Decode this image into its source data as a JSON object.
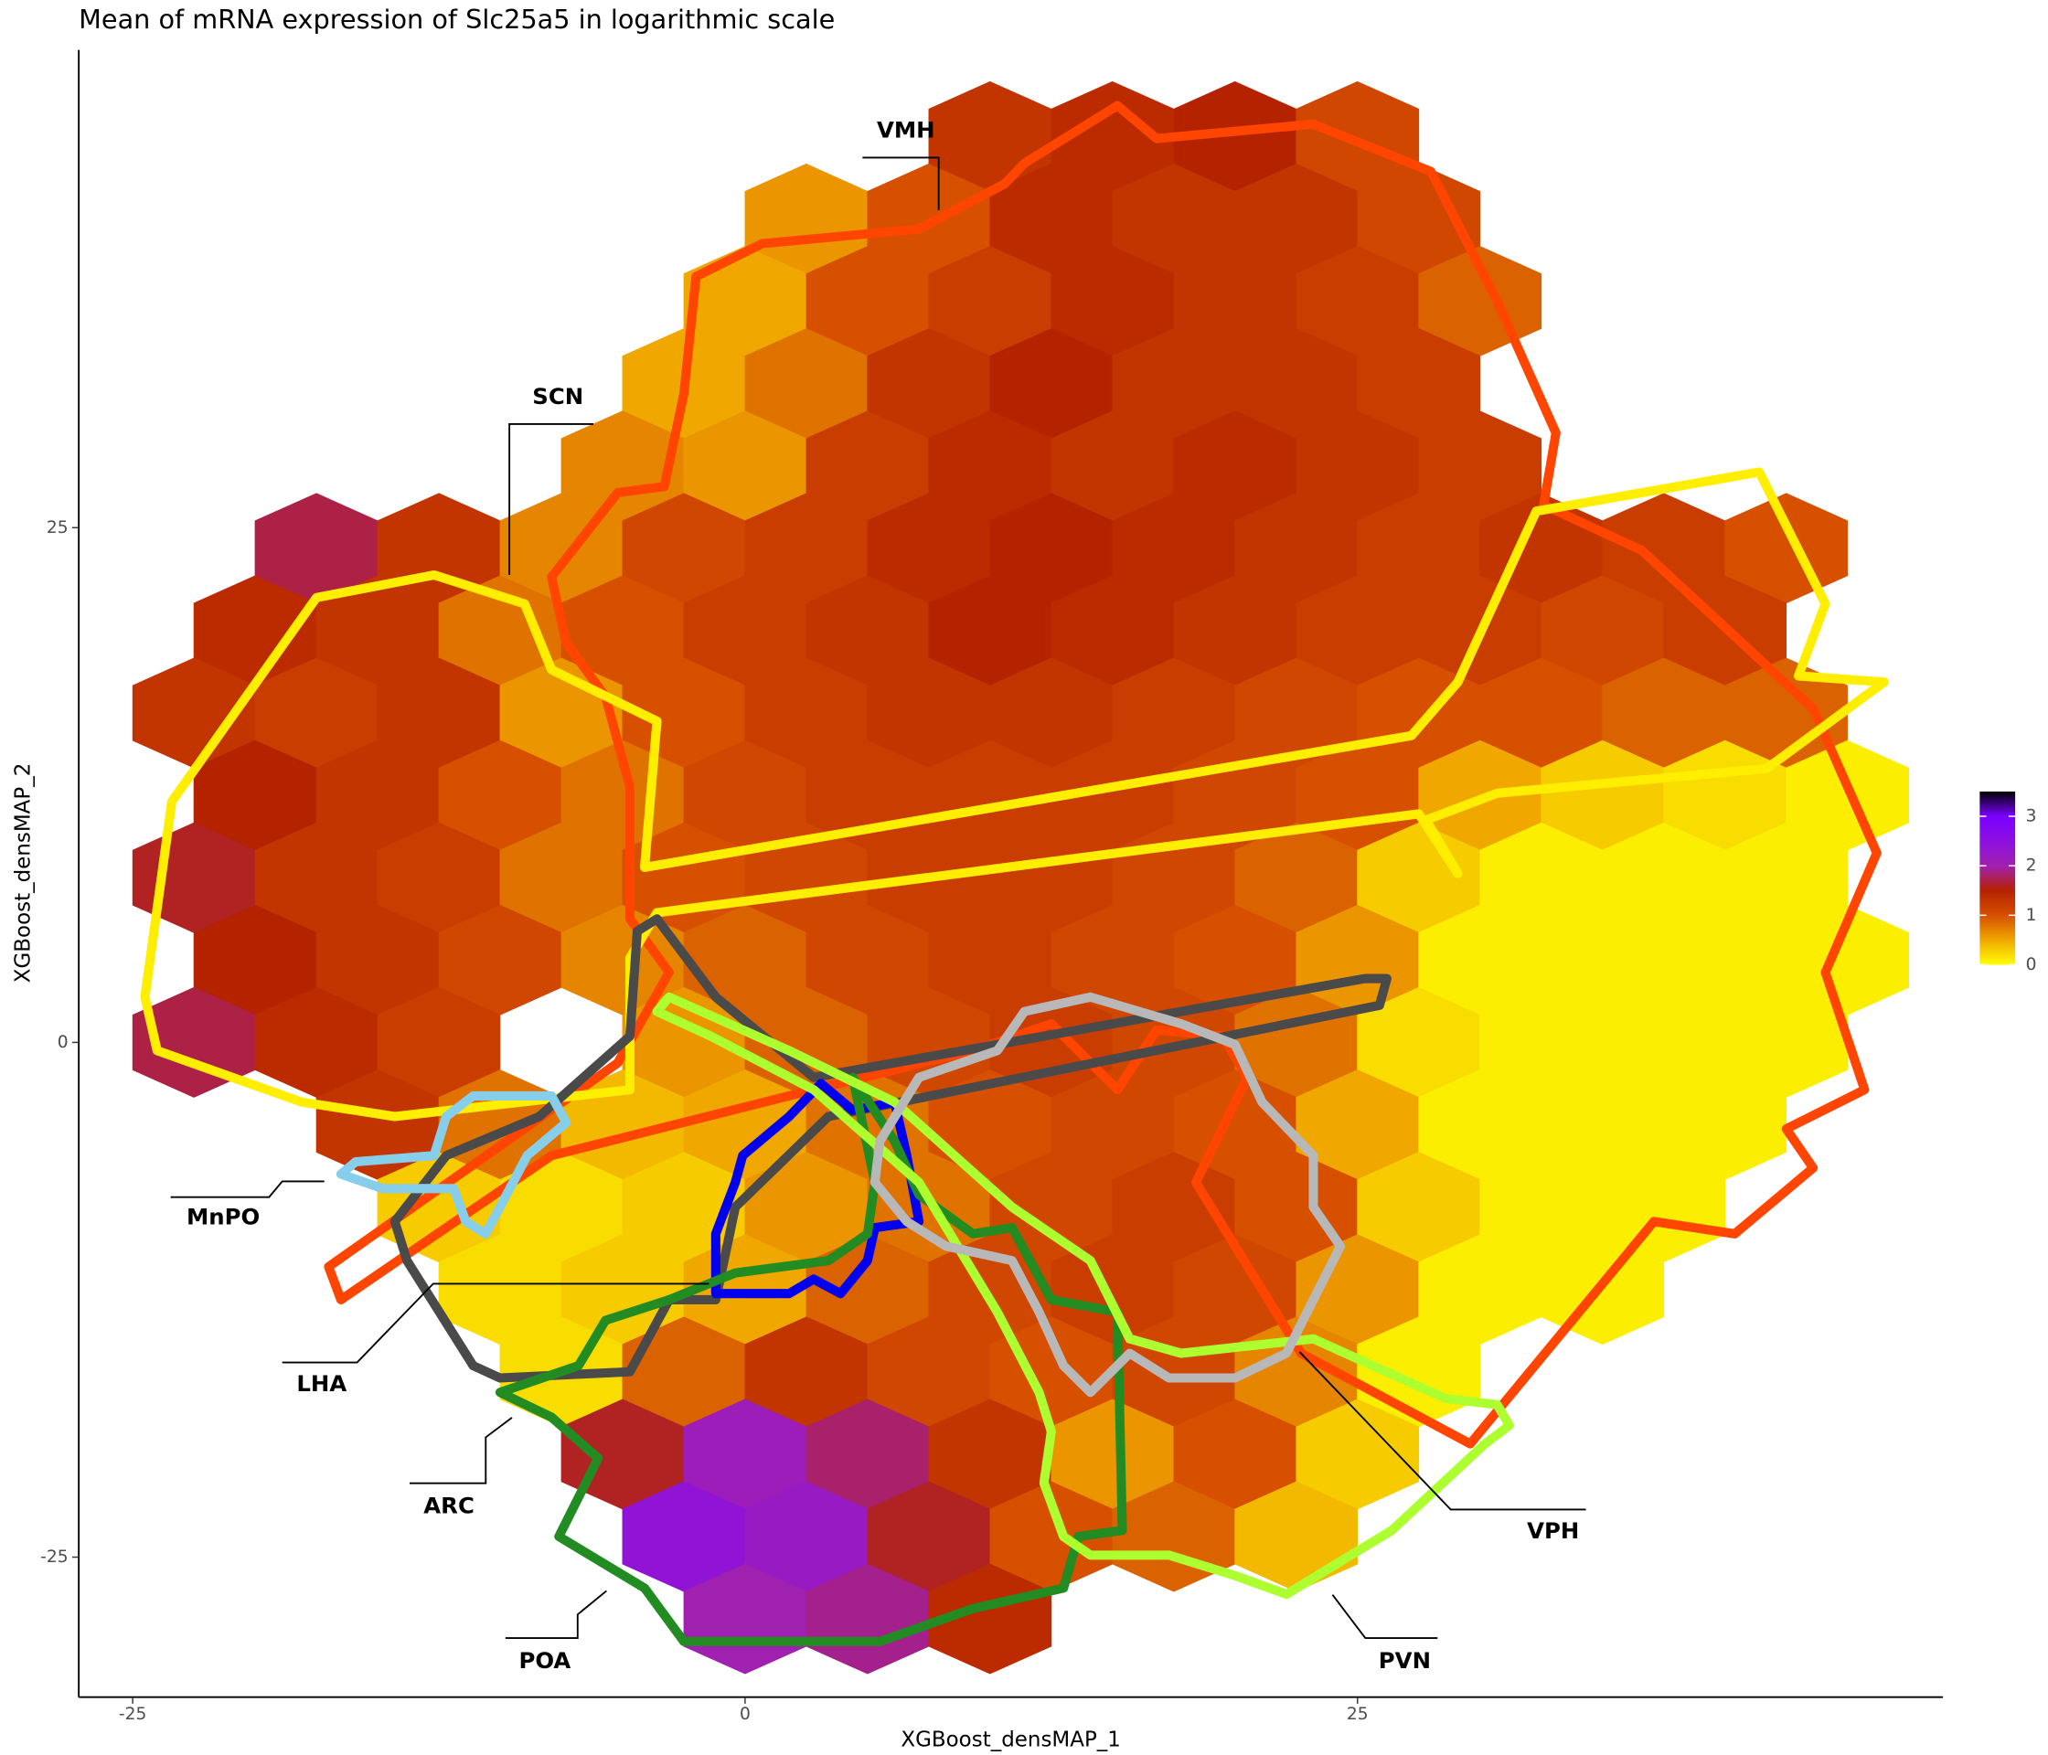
{
  "chart_data": {
    "type": "hexbin",
    "title": "Mean of mRNA expression of Slc25a5 in logarithmic scale",
    "x_label": "XGBoost_densMAP_1",
    "y_label": "XGBoost_densMAP_2",
    "xlim": [
      -27.2,
      48.9
    ],
    "ylim": [
      -31.8,
      48.2
    ],
    "xticks": [
      -25,
      0,
      25
    ],
    "yticks": [
      -25,
      0,
      25
    ],
    "rows": [
      {
        "y": 44,
        "x": [
          10,
          15,
          20,
          25
        ],
        "values": [
          1.3,
          1.4,
          1.5,
          1.1
        ]
      },
      {
        "y": 40,
        "x": [
          2.5,
          7.5,
          12.5,
          17.5,
          22.5,
          27.5
        ],
        "values": [
          0.6,
          1.0,
          1.4,
          1.3,
          1.3,
          1.1
        ]
      },
      {
        "y": 36,
        "x": [
          0,
          5,
          10,
          15,
          20,
          25,
          30
        ],
        "values": [
          0.5,
          1.0,
          1.2,
          1.4,
          1.3,
          1.2,
          0.9
        ]
      },
      {
        "y": 32,
        "x": [
          -2.5,
          2.5,
          7.5,
          12.5,
          17.5,
          22.5,
          27.5
        ],
        "values": [
          0.5,
          0.8,
          1.3,
          1.5,
          1.3,
          1.3,
          1.2
        ]
      },
      {
        "y": 28,
        "x": [
          -5,
          0,
          5,
          10,
          15,
          20,
          25,
          30
        ],
        "values": [
          0.7,
          0.6,
          1.2,
          1.4,
          1.3,
          1.4,
          1.3,
          1.2
        ]
      },
      {
        "y": 24,
        "x": [
          -17.5,
          -12.5,
          -7.5,
          -2.5,
          2.5,
          7.5,
          12.5,
          17.5,
          22.5,
          27.5,
          32.5,
          37.5,
          42.5
        ],
        "values": [
          1.7,
          1.3,
          0.7,
          1.1,
          1.2,
          1.4,
          1.5,
          1.4,
          1.3,
          1.2,
          1.3,
          1.2,
          1.0
        ]
      },
      {
        "y": 20,
        "x": [
          -20,
          -15,
          -10,
          -5,
          0,
          5,
          10,
          15,
          20,
          25,
          30,
          35,
          40
        ],
        "values": [
          1.4,
          1.3,
          0.8,
          1.0,
          1.2,
          1.3,
          1.5,
          1.4,
          1.3,
          1.2,
          1.2,
          1.1,
          1.2
        ]
      },
      {
        "y": 16,
        "x": [
          -22.5,
          -17.5,
          -12.5,
          -7.5,
          -2.5,
          2.5,
          7.5,
          12.5,
          17.5,
          22.5,
          27.5,
          32.5,
          37.5,
          42.5
        ],
        "values": [
          1.3,
          1.2,
          1.3,
          0.6,
          1.0,
          1.2,
          1.3,
          1.3,
          1.2,
          1.1,
          1.0,
          1.0,
          0.9,
          0.9
        ]
      },
      {
        "y": 12,
        "x": [
          -20,
          -15,
          -10,
          -5,
          0,
          5,
          10,
          15,
          20,
          25,
          30,
          35,
          40,
          45
        ],
        "values": [
          1.5,
          1.3,
          1.0,
          0.8,
          1.1,
          1.2,
          1.2,
          1.2,
          1.1,
          1.0,
          0.5,
          0.3,
          0.2,
          0.1
        ]
      },
      {
        "y": 8,
        "x": [
          -22.5,
          -17.5,
          -12.5,
          -7.5,
          -2.5,
          2.5,
          7.5,
          12.5,
          17.5,
          22.5,
          27.5,
          32.5,
          37.5,
          42.5
        ],
        "values": [
          1.6,
          1.3,
          1.2,
          0.8,
          1.0,
          1.1,
          1.2,
          1.2,
          1.1,
          0.9,
          0.3,
          0.1,
          0.1,
          0.1
        ]
      },
      {
        "y": 4,
        "x": [
          -20,
          -15,
          -10,
          -5,
          0,
          5,
          10,
          15,
          20,
          25,
          30,
          35,
          40,
          45
        ],
        "values": [
          1.5,
          1.3,
          1.1,
          0.7,
          0.9,
          1.1,
          1.2,
          1.1,
          1.0,
          0.6,
          0.1,
          0.1,
          0.1,
          0.1
        ]
      },
      {
        "y": 0,
        "x": [
          -22.5,
          -17.5,
          -12.5,
          -2.5,
          2.5,
          7.5,
          12.5,
          17.5,
          22.5,
          27.5,
          32.5,
          37.5,
          42.5
        ],
        "values": [
          1.7,
          1.4,
          1.2,
          0.6,
          0.9,
          1.1,
          1.2,
          1.1,
          0.8,
          0.2,
          0.1,
          0.1,
          0.1
        ]
      },
      {
        "y": -4,
        "x": [
          -15,
          -10,
          -5,
          0,
          5,
          10,
          15,
          20,
          25,
          30,
          35,
          40
        ],
        "values": [
          1.3,
          0.8,
          0.4,
          0.5,
          0.8,
          1.0,
          1.1,
          1.0,
          0.5,
          0.1,
          0.1,
          0.1
        ]
      },
      {
        "y": -8,
        "x": [
          -12.5,
          -7.5,
          -2.5,
          2.5,
          7.5,
          12.5,
          17.5,
          22.5,
          27.5,
          32.5,
          37.5
        ],
        "values": [
          0.3,
          0.2,
          0.3,
          0.6,
          0.8,
          1.1,
          1.2,
          1.0,
          0.3,
          0.1,
          0.1
        ]
      },
      {
        "y": -12,
        "x": [
          -10,
          -5,
          0,
          5,
          10,
          15,
          20,
          25,
          30,
          35
        ],
        "values": [
          0.2,
          0.3,
          0.5,
          0.9,
          1.1,
          1.2,
          1.1,
          0.6,
          0.1,
          0.1
        ]
      },
      {
        "y": -16,
        "x": [
          -7.5,
          -2.5,
          2.5,
          7.5,
          12.5,
          17.5,
          22.5,
          27.5
        ],
        "values": [
          0.2,
          0.9,
          1.3,
          1.1,
          1.0,
          1.1,
          0.7,
          0.1
        ]
      },
      {
        "y": -20,
        "x": [
          -5,
          0,
          5,
          10,
          15,
          20,
          25
        ],
        "values": [
          1.6,
          2.1,
          1.8,
          1.3,
          0.6,
          1.0,
          0.3
        ]
      },
      {
        "y": -24,
        "x": [
          -2.5,
          2.5,
          7.5,
          12.5,
          17.5,
          22.5
        ],
        "values": [
          2.4,
          2.2,
          1.6,
          1.0,
          0.9,
          0.4
        ]
      },
      {
        "y": -28,
        "x": [
          0,
          5,
          10
        ],
        "values": [
          2.0,
          1.9,
          1.4
        ]
      }
    ],
    "colorbar": {
      "lim": [
        0,
        3.5
      ],
      "ticks": [
        0,
        1,
        2,
        3
      ],
      "colors": [
        "#ffff00",
        "#f0a800",
        "#d65000",
        "#b52200",
        "#a020b0",
        "#8c10e0",
        "#7a00ff",
        "#000000"
      ]
    },
    "regions": [
      {
        "name": "VMH",
        "color": "#ff4500",
        "x": [
          -7.9,
          -5.2,
          -3.3,
          -2.5,
          -2.0,
          0.7,
          7.1,
          10.6,
          11.4,
          15.2,
          16.8,
          23.2,
          28.0,
          30.7,
          33.1,
          32.6,
          36.6,
          43.6,
          46.2,
          44.1,
          45.7,
          42.5,
          43.6,
          40.4,
          37.1,
          29.6,
          22.7,
          18.4,
          20.5,
          19.5,
          16.8,
          15.2,
          12.5,
          9.3,
          2.8,
          -7.9,
          -16.5,
          -17.0,
          -5.2,
          -3.1,
          -4.7,
          -4.7,
          -5.7,
          -7.3
        ],
        "y": [
          22.6,
          26.7,
          27.0,
          31.5,
          37.2,
          38.8,
          39.5,
          41.7,
          42.7,
          45.5,
          43.9,
          44.6,
          42.3,
          36.0,
          29.6,
          26.1,
          23.9,
          16.2,
          9.2,
          3.4,
          -2.3,
          -4.2,
          -6.1,
          -9.3,
          -8.7,
          -19.5,
          -15.1,
          -6.8,
          -1.7,
          0.3,
          0.6,
          -2.3,
          0.9,
          -0.4,
          -2.3,
          -5.5,
          -12.5,
          -10.9,
          -1.0,
          3.4,
          6.0,
          12.4,
          16.8,
          19.4
        ]
      },
      {
        "name": "SCN",
        "color": "#ffee00",
        "x": [
          -24.5,
          -23.4,
          -17.5,
          -12.7,
          -9.0,
          -7.9,
          -3.6,
          -4.1,
          27.2,
          29.1,
          32.3,
          41.4,
          44.1,
          43.0,
          46.5,
          41.7,
          30.7,
          27.8,
          29.1,
          27.5,
          -3.6,
          -4.7,
          -4.7,
          -14.3,
          -18.1,
          -24.0
        ],
        "y": [
          2.2,
          11.7,
          21.6,
          22.7,
          21.3,
          18.1,
          15.6,
          8.5,
          14.9,
          17.5,
          25.8,
          27.7,
          21.3,
          17.8,
          17.5,
          13.3,
          12.1,
          10.8,
          8.2,
          11.1,
          6.3,
          4.1,
          -2.3,
          -3.6,
          -2.9,
          -0.4
        ]
      },
      {
        "name": "LHA",
        "color": "#4a4a4a",
        "x": [
          -4.4,
          -4.7,
          -8.4,
          -12.2,
          -14.3,
          -13.8,
          -11.1,
          -10.0,
          -4.7,
          -3.1,
          -1.2,
          -0.4,
          3.4,
          25.9,
          26.2,
          25.3,
          2.8,
          -1.2,
          -3.6
        ],
        "y": [
          5.4,
          0.3,
          -3.6,
          -5.5,
          -8.7,
          -10.6,
          -15.7,
          -16.3,
          -16.0,
          -12.5,
          -12.5,
          -8.0,
          -3.6,
          1.8,
          3.1,
          3.1,
          -1.7,
          2.2,
          6.0
        ]
      },
      {
        "name": "MnPO",
        "color": "#87ceeb",
        "x": [
          -16.5,
          -15.9,
          -12.7,
          -12.2,
          -11.1,
          -7.9,
          -7.3,
          -8.9,
          -10.0,
          -10.6,
          -11.4,
          -11.9,
          -14.8
        ],
        "y": [
          -6.4,
          -5.8,
          -5.5,
          -3.6,
          -2.6,
          -2.6,
          -3.9,
          -5.5,
          -8.0,
          -9.3,
          -8.7,
          -7.1,
          -7.1
        ]
      },
      {
        "name": "ARC",
        "color": "#0000ee",
        "x": [
          -0.1,
          1.8,
          3.1,
          4.4,
          6.1,
          6.6,
          7.1,
          5.3,
          5.0,
          3.9,
          2.8,
          1.8,
          -1.2,
          -1.2,
          -0.4
        ],
        "y": [
          -5.5,
          -3.6,
          -2.0,
          -3.3,
          -2.9,
          -5.5,
          -8.7,
          -9.0,
          -10.6,
          -12.2,
          -11.5,
          -12.2,
          -12.2,
          -9.3,
          -6.8
        ]
      },
      {
        "name": "POA",
        "color": "#228b22",
        "x": [
          -10.0,
          -6.8,
          -5.7,
          -3.1,
          -0.4,
          3.4,
          5.0,
          5.3,
          4.4,
          6.1,
          7.1,
          9.3,
          10.9,
          12.5,
          15.2,
          15.4,
          13.6,
          13.0,
          9.3,
          5.5,
          -2.5,
          -4.1,
          -7.6,
          -6.0,
          -7.9
        ],
        "y": [
          -17.0,
          -15.7,
          -13.5,
          -12.5,
          -11.2,
          -10.6,
          -9.3,
          -6.8,
          -1.7,
          -4.8,
          -7.4,
          -9.3,
          -9.0,
          -12.5,
          -13.1,
          -23.7,
          -24.0,
          -26.5,
          -27.5,
          -29.1,
          -29.1,
          -26.5,
          -24.0,
          -20.2,
          -18.2
        ]
      },
      {
        "name": "PVN",
        "color": "#adff2f",
        "x": [
          -3.6,
          -3.1,
          1.8,
          6.1,
          10.9,
          14.1,
          15.7,
          17.8,
          23.2,
          28.6,
          30.7,
          31.2,
          30.2,
          26.4,
          22.1,
          20.0,
          17.3,
          14.1,
          13.0,
          12.2,
          12.5,
          12.0,
          10.3,
          7.1,
          2.8,
          -1.4
        ],
        "y": [
          1.5,
          2.2,
          -0.4,
          -2.9,
          -8.0,
          -10.6,
          -14.4,
          -15.1,
          -14.4,
          -17.3,
          -17.6,
          -18.6,
          -19.5,
          -23.7,
          -26.8,
          -25.9,
          -24.9,
          -24.9,
          -24.0,
          -21.4,
          -18.9,
          -17.0,
          -13.1,
          -6.8,
          -2.3,
          0.3
        ]
      },
      {
        "name": "VPH",
        "color": "#b8b8b8",
        "x": [
          5.5,
          7.1,
          10.3,
          11.4,
          14.1,
          17.8,
          20.0,
          21.1,
          23.2,
          23.2,
          24.3,
          23.2,
          22.1,
          20.0,
          17.3,
          15.7,
          14.1,
          13.0,
          12.0,
          10.9,
          8.2,
          6.6,
          5.3
        ],
        "y": [
          -4.8,
          -1.7,
          -0.4,
          1.5,
          2.2,
          0.9,
          -0.1,
          -2.9,
          -5.5,
          -8.0,
          -9.9,
          -12.5,
          -15.1,
          -16.3,
          -16.3,
          -15.1,
          -17.0,
          -15.7,
          -13.1,
          -10.6,
          -9.9,
          -8.7,
          -6.8
        ]
      }
    ]
  }
}
